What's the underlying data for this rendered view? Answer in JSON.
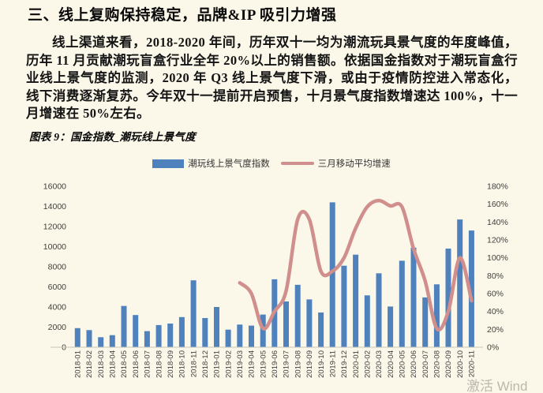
{
  "page": {
    "background": "#FBF7E9",
    "heading": "三、线上复购保持稳定，品牌&IP 吸引力增强",
    "paragraph": "线上渠道来看，2018-2020 年间，历年双十一均为潮流玩具景气度的年度峰值，历年 11 月贡献潮玩盲盒行业全年 20%以上的销售额。依据国金指数对于潮玩盲盒行业线上景气度的监测，2020 年 Q3 线上景气度下滑，或由于疫情防控进入常态化，线下消费逐渐复苏。今年双十一提前开启预售，十月景气度指数增速达 100%，十一月增速在 50%左右。",
    "watermark": "激活 Wind"
  },
  "figure": {
    "caption": "图表 9：国金指数_潮玩线上景气度",
    "rule_color": "#33ADE0"
  },
  "chart_data": {
    "type": "bar",
    "title": "国金指数_潮玩线上景气度",
    "xlabel": "",
    "ylabel": "",
    "grid": false,
    "legend_position": "top-center",
    "categories": [
      "2018-01",
      "2018-02",
      "2018-03",
      "2018-04",
      "2018-05",
      "2018-06",
      "2018-07",
      "2018-08",
      "2018-09",
      "2018-10",
      "2018-11",
      "2018-12",
      "2019-01",
      "2019-02",
      "2019-03",
      "2019-04",
      "2019-05",
      "2019-06",
      "2019-07",
      "2019-08",
      "2019-09",
      "2019-10",
      "2019-11",
      "2019-12",
      "2020-01",
      "2020-02",
      "2020-03",
      "2020-04",
      "2020-05",
      "2020-06",
      "2020-07",
      "2020-08",
      "2020-09",
      "2020-10",
      "2020-11"
    ],
    "series": [
      {
        "name": "潮玩线上景气度指数",
        "type": "bar",
        "axis": "left",
        "color": "#4F81BD",
        "values": [
          1900,
          1700,
          1000,
          1200,
          4100,
          3200,
          1600,
          2200,
          2350,
          3000,
          6650,
          2900,
          4000,
          1750,
          2250,
          2150,
          3250,
          6750,
          4550,
          6200,
          4750,
          3450,
          14400,
          8100,
          9200,
          5150,
          7350,
          4050,
          8600,
          9900,
          4950,
          6250,
          9800,
          12700,
          11600
        ]
      },
      {
        "name": "三月移动平均增速",
        "type": "line",
        "axis": "right",
        "color": "#D08E8C",
        "values": [
          null,
          null,
          null,
          null,
          null,
          null,
          null,
          null,
          null,
          null,
          null,
          null,
          null,
          null,
          72,
          60,
          21,
          40,
          63,
          143,
          143,
          85,
          85,
          100,
          133,
          157,
          164,
          158,
          157,
          110,
          74,
          21,
          40,
          100,
          52
        ]
      }
    ],
    "left_axis": {
      "min": 0,
      "max": 16000,
      "step": 2000,
      "tick_labels": [
        "0",
        "2000",
        "4000",
        "6000",
        "8000",
        "10000",
        "12000",
        "14000",
        "16000"
      ]
    },
    "right_axis": {
      "min": 0,
      "max": 180,
      "step": 20,
      "unit": "%",
      "tick_labels": [
        "0%",
        "20%",
        "40%",
        "60%",
        "80%",
        "100%",
        "120%",
        "140%",
        "160%",
        "180%"
      ]
    },
    "colors": {
      "axis_text": "#3f3f3f",
      "baseline": "#C9C6BB"
    }
  }
}
